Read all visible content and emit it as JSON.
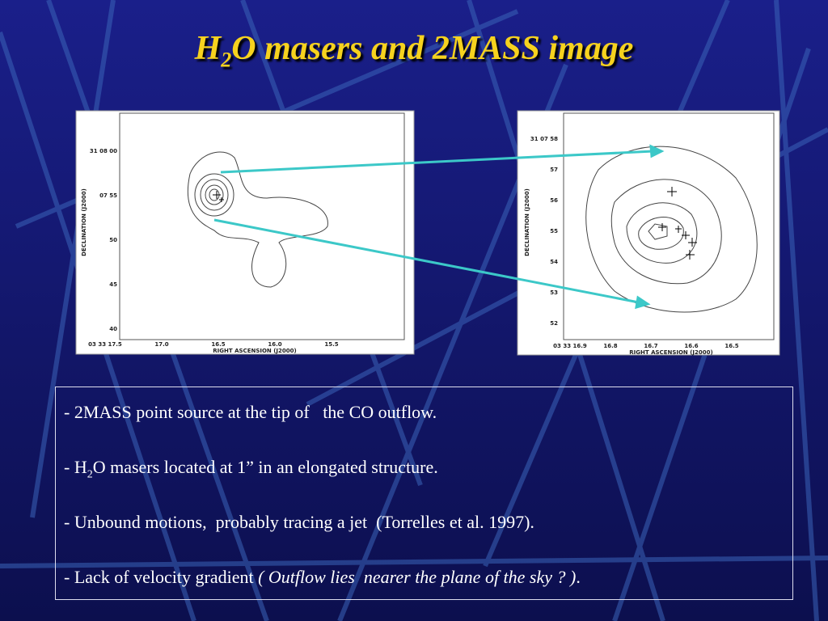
{
  "title": {
    "parts": [
      "H",
      "2",
      "O masers and 2MASS image"
    ]
  },
  "figures": [
    {
      "y_labels": [
        "31 08 00",
        "07 55",
        "50",
        "45",
        "40"
      ],
      "x_labels": [
        "03 33 17.5",
        "17.0",
        "16.5",
        "16.0",
        "15.5"
      ],
      "x_axis_label": "RIGHT ASCENSION (J2000)",
      "y_axis_label": "DECLINATION (J2000)"
    },
    {
      "y_labels": [
        "31 07 58",
        "57",
        "56",
        "55",
        "54",
        "53",
        "52"
      ],
      "x_labels": [
        "03 33 16.9",
        "16.8",
        "16.7",
        "16.6",
        "16.5"
      ],
      "x_axis_label": "RIGHT ASCENSION (J2000)",
      "y_axis_label": "DECLINATION (J2000)"
    }
  ],
  "bullets": [
    [
      "- 2MASS point source at the tip of   the CO outflow."
    ],
    [
      "- H",
      "2",
      "O masers located at 1” in an elongated structure."
    ],
    [
      "- Unbound motions,  probably tracing a jet  (Torrelles et al. 1997)."
    ],
    [
      "- Lack of velocity gradient ",
      "( Outflow lies  nearer the plane of the sky ? )",
      "."
    ]
  ]
}
